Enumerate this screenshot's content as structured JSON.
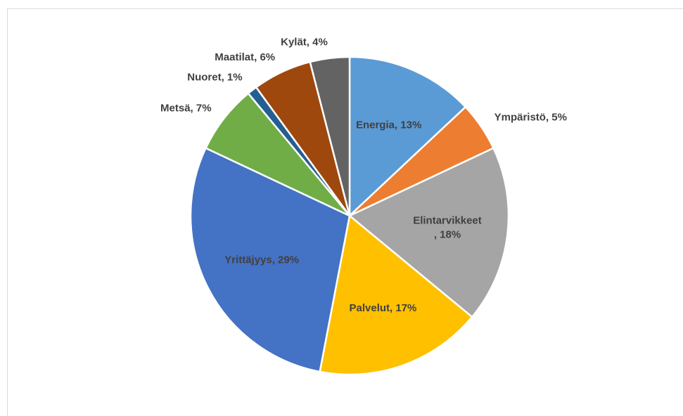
{
  "chart_data": {
    "type": "pie",
    "values": [
      13,
      5,
      18,
      17,
      29,
      7,
      1,
      6,
      4
    ],
    "value_labels": [
      "Energia, 13%",
      "Ympäristö, 5%",
      "Elintarvikkeet\n, 18%",
      "Palvelut, 17%",
      "Yrittäjyys, 29%",
      "Metsä, 7%",
      "Nuoret, 1%",
      "Maatilat, 6%",
      "Kylät, 4%"
    ],
    "colors": [
      "#5b9bd5",
      "#ed7d31",
      "#a5a5a5",
      "#ffc000",
      "#4472c4",
      "#70ad47",
      "#255e91",
      "#9e480e",
      "#636363"
    ]
  }
}
